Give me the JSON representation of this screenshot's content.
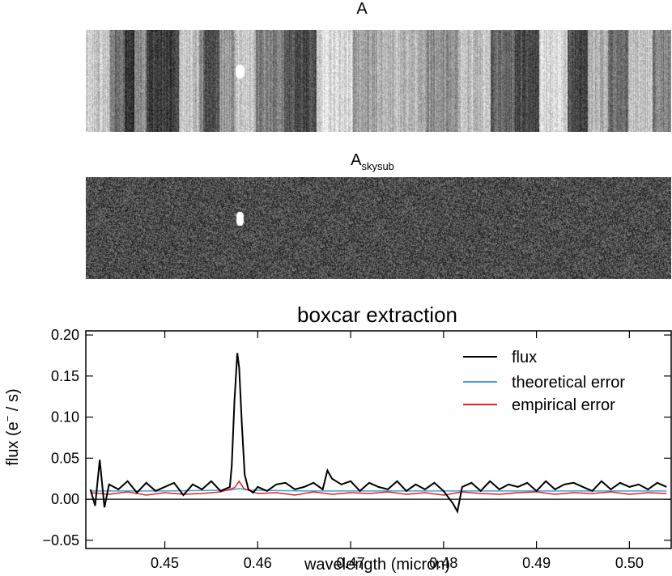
{
  "panels": {
    "raw": {
      "title": "A"
    },
    "skysub": {
      "title_main": "A",
      "title_sub": "skysub"
    }
  },
  "chart_data": {
    "type": "line",
    "title": "boxcar extraction",
    "xlabel": "wavelength (micron)",
    "ylabel_main": "flux (e",
    "ylabel_sup": "−",
    "ylabel_tail": " / s)",
    "xlim": [
      0.4415,
      0.5045
    ],
    "ylim": [
      -0.06,
      0.205
    ],
    "xticks": [
      0.45,
      0.46,
      0.47,
      0.48,
      0.49,
      0.5
    ],
    "xtick_labels": [
      "0.45",
      "0.46",
      "0.47",
      "0.48",
      "0.49",
      "0.50"
    ],
    "yticks": [
      -0.05,
      0.0,
      0.05,
      0.1,
      0.15,
      0.2
    ],
    "ytick_labels": [
      "−0.05",
      "0.00",
      "0.05",
      "0.10",
      "0.15",
      "0.20"
    ],
    "zero_line": true,
    "legend_position": "top-right",
    "series": [
      {
        "name": "flux",
        "color": "#000000",
        "x": [
          0.442,
          0.4425,
          0.443,
          0.4435,
          0.444,
          0.445,
          0.446,
          0.447,
          0.448,
          0.449,
          0.45,
          0.451,
          0.452,
          0.453,
          0.454,
          0.455,
          0.456,
          0.457,
          0.4572,
          0.4575,
          0.4578,
          0.458,
          0.4583,
          0.4586,
          0.459,
          0.4595,
          0.46,
          0.461,
          0.462,
          0.463,
          0.464,
          0.465,
          0.466,
          0.467,
          0.4675,
          0.468,
          0.469,
          0.47,
          0.471,
          0.472,
          0.473,
          0.474,
          0.475,
          0.476,
          0.477,
          0.478,
          0.479,
          0.48,
          0.481,
          0.4815,
          0.482,
          0.483,
          0.484,
          0.485,
          0.486,
          0.487,
          0.488,
          0.489,
          0.49,
          0.491,
          0.492,
          0.493,
          0.494,
          0.495,
          0.496,
          0.497,
          0.498,
          0.499,
          0.5,
          0.501,
          0.502,
          0.503,
          0.504
        ],
        "y": [
          0.012,
          -0.008,
          0.048,
          -0.01,
          0.018,
          0.012,
          0.022,
          0.008,
          0.02,
          0.01,
          0.015,
          0.02,
          0.005,
          0.018,
          0.012,
          0.022,
          0.01,
          0.015,
          0.04,
          0.12,
          0.178,
          0.16,
          0.09,
          0.03,
          0.012,
          0.008,
          0.015,
          0.01,
          0.018,
          0.02,
          0.012,
          0.015,
          0.02,
          0.012,
          0.035,
          0.025,
          0.018,
          0.022,
          0.01,
          0.02,
          0.015,
          0.012,
          0.022,
          0.01,
          0.018,
          0.012,
          0.02,
          0.01,
          -0.005,
          -0.015,
          0.015,
          0.02,
          0.01,
          0.022,
          0.012,
          0.018,
          0.015,
          0.02,
          0.01,
          0.022,
          0.012,
          0.018,
          0.02,
          0.015,
          0.01,
          0.022,
          0.012,
          0.02,
          0.015,
          0.018,
          0.012,
          0.02,
          0.015
        ]
      },
      {
        "name": "theoretical error",
        "color": "#3fa0e0",
        "x": [
          0.442,
          0.45,
          0.457,
          0.458,
          0.459,
          0.465,
          0.475,
          0.485,
          0.495,
          0.504
        ],
        "y": [
          0.01,
          0.01,
          0.011,
          0.013,
          0.011,
          0.01,
          0.01,
          0.01,
          0.01,
          0.01
        ]
      },
      {
        "name": "empirical error",
        "color": "#e82020",
        "x": [
          0.442,
          0.444,
          0.446,
          0.448,
          0.45,
          0.452,
          0.454,
          0.456,
          0.4575,
          0.458,
          0.4585,
          0.46,
          0.462,
          0.464,
          0.466,
          0.468,
          0.47,
          0.472,
          0.474,
          0.476,
          0.478,
          0.48,
          0.482,
          0.484,
          0.486,
          0.488,
          0.49,
          0.492,
          0.494,
          0.496,
          0.498,
          0.5,
          0.502,
          0.504
        ],
        "y": [
          0.008,
          0.006,
          0.009,
          0.005,
          0.008,
          0.006,
          0.007,
          0.009,
          0.014,
          0.022,
          0.013,
          0.007,
          0.008,
          0.005,
          0.009,
          0.006,
          0.008,
          0.007,
          0.009,
          0.006,
          0.008,
          0.005,
          0.009,
          0.007,
          0.006,
          0.008,
          0.009,
          0.006,
          0.008,
          0.007,
          0.009,
          0.006,
          0.008,
          0.007
        ]
      }
    ]
  }
}
